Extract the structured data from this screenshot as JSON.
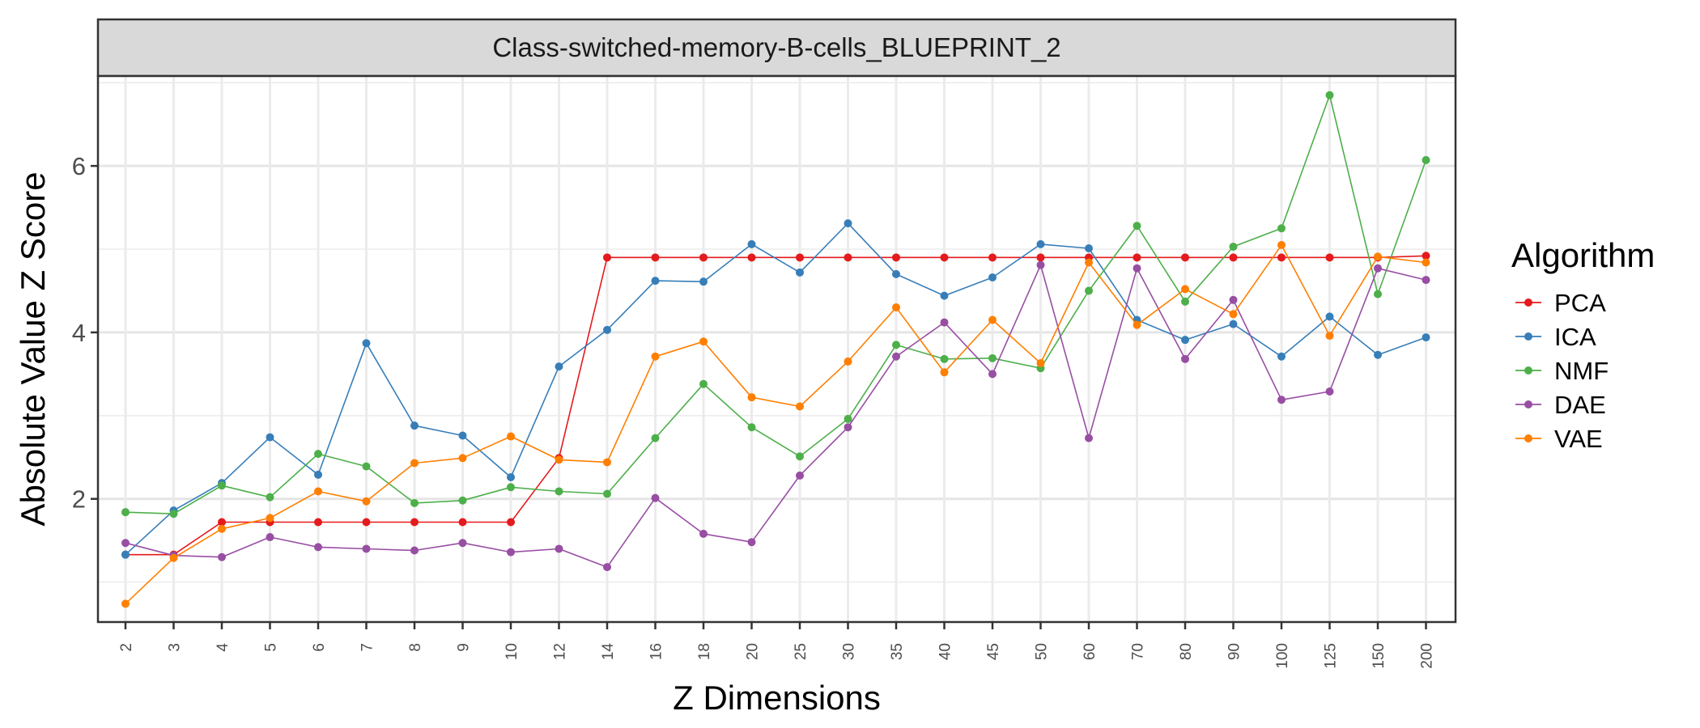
{
  "chart_data": {
    "type": "line",
    "facet_title": "Class-switched-memory-B-cells_BLUEPRINT_2",
    "xlabel": "Z Dimensions",
    "ylabel": "Absolute Value Z Score",
    "categories": [
      "2",
      "3",
      "4",
      "5",
      "6",
      "7",
      "8",
      "9",
      "10",
      "12",
      "14",
      "16",
      "18",
      "20",
      "25",
      "30",
      "35",
      "40",
      "45",
      "50",
      "60",
      "70",
      "80",
      "90",
      "100",
      "125",
      "150",
      "200"
    ],
    "ylim": [
      0.52,
      7.08
    ],
    "y_ticks": [
      2,
      4,
      6
    ],
    "y_tick_labels": [
      "2",
      "4",
      "6"
    ],
    "grid": true,
    "legend": {
      "title": "Algorithm",
      "position": "right"
    },
    "series": [
      {
        "name": "PCA",
        "color": "#e41a1c",
        "values": [
          1.33,
          1.33,
          1.72,
          1.72,
          1.72,
          1.72,
          1.72,
          1.72,
          1.72,
          2.49,
          4.9,
          4.9,
          4.9,
          4.9,
          4.9,
          4.9,
          4.9,
          4.9,
          4.9,
          4.9,
          4.9,
          4.9,
          4.9,
          4.9,
          4.9,
          4.9,
          4.9,
          4.92
        ]
      },
      {
        "name": "ICA",
        "color": "#377eb8",
        "values": [
          1.33,
          1.86,
          2.19,
          2.74,
          2.29,
          3.87,
          2.88,
          2.76,
          2.26,
          3.59,
          4.03,
          4.62,
          4.61,
          5.06,
          4.72,
          5.31,
          4.7,
          4.44,
          4.66,
          5.06,
          5.01,
          4.15,
          3.91,
          4.1,
          3.71,
          4.19,
          3.73,
          3.94
        ]
      },
      {
        "name": "NMF",
        "color": "#4daf4a",
        "values": [
          1.84,
          1.82,
          2.16,
          2.02,
          2.54,
          2.39,
          1.95,
          1.98,
          2.14,
          2.09,
          2.06,
          2.73,
          3.38,
          2.86,
          2.51,
          2.96,
          3.85,
          3.68,
          3.69,
          3.57,
          4.5,
          5.28,
          4.37,
          5.03,
          5.25,
          6.85,
          4.46,
          6.07
        ]
      },
      {
        "name": "DAE",
        "color": "#984ea3",
        "values": [
          1.47,
          1.32,
          1.3,
          1.54,
          1.42,
          1.4,
          1.38,
          1.47,
          1.36,
          1.4,
          1.18,
          2.01,
          1.58,
          1.48,
          2.28,
          2.86,
          3.71,
          4.12,
          3.5,
          4.81,
          2.73,
          4.77,
          3.68,
          4.39,
          3.19,
          3.29,
          4.77,
          4.63
        ]
      },
      {
        "name": "VAE",
        "color": "#ff7f00",
        "values": [
          0.74,
          1.29,
          1.64,
          1.77,
          2.09,
          1.97,
          2.43,
          2.49,
          2.75,
          2.47,
          2.44,
          3.71,
          3.89,
          3.22,
          3.11,
          3.65,
          4.3,
          3.52,
          4.15,
          3.63,
          4.84,
          4.09,
          4.52,
          4.22,
          5.05,
          3.96,
          4.91,
          4.84
        ]
      }
    ]
  }
}
